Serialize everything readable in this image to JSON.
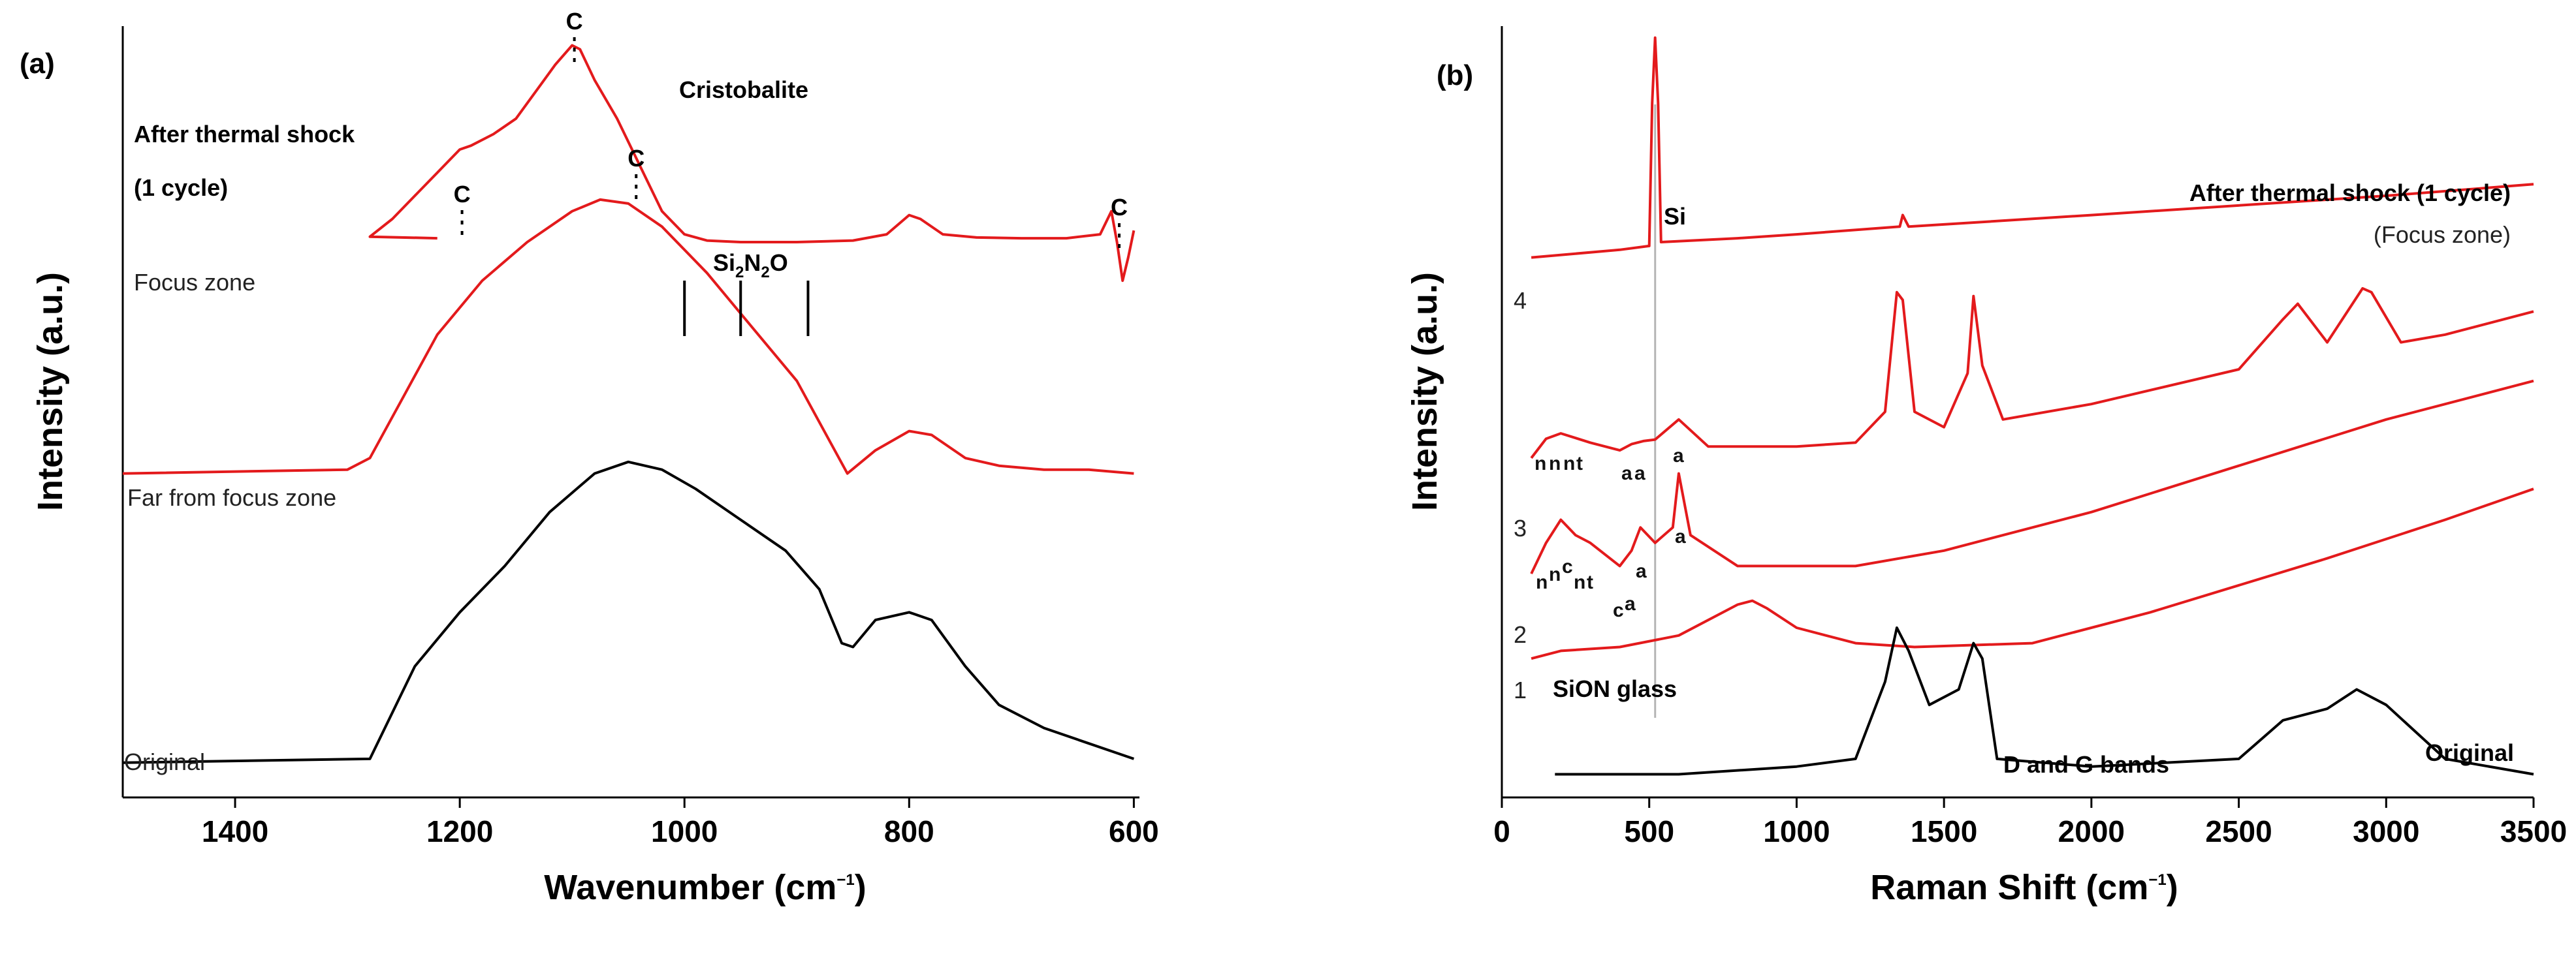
{
  "colors": {
    "red_trace": "#e31a1c",
    "black_trace": "#000000",
    "si_line": "#b5b5b5"
  },
  "chart_data": [
    {
      "panel": "(a)",
      "type": "line",
      "xlabel_main": "Wavenumber (cm",
      "xlabel_sup": "−1",
      "xlabel_end": ")",
      "ylabel": "Intensity (a.u.)",
      "xlim": [
        1500,
        595
      ],
      "x_reversed": true,
      "xticks": [
        1400,
        1200,
        1000,
        800,
        600
      ],
      "tick_labels": [
        "1400",
        "1200",
        "1000",
        "800",
        "600"
      ],
      "ylim": [
        0,
        10
      ],
      "legend_title_line1": "After thermal shock",
      "legend_title_line2": "(1 cycle)",
      "phase_label": "Cristobalite",
      "si2n2o": {
        "base": "Si",
        "sub1": "2",
        "mid": "N",
        "sub2": "2",
        "end": "O",
        "positions": [
          1000,
          950,
          890
        ]
      },
      "c_markers": [
        {
          "label": "C",
          "x": 1198
        },
        {
          "label": "C",
          "x": 1098
        },
        {
          "label": "C",
          "x": 1043
        },
        {
          "label": "C",
          "x": 613
        }
      ],
      "series": [
        {
          "name": "Focus zone",
          "color": "#e31a1c",
          "points": [
            [
              1220,
              7.25
            ],
            [
              1280,
              7.27
            ],
            [
              1260,
              7.5
            ],
            [
              1240,
              7.8
            ],
            [
              1220,
              8.1
            ],
            [
              1200,
              8.4
            ],
            [
              1190,
              8.45
            ],
            [
              1170,
              8.6
            ],
            [
              1150,
              8.8
            ],
            [
              1130,
              9.2
            ],
            [
              1115,
              9.5
            ],
            [
              1100,
              9.75
            ],
            [
              1093,
              9.7
            ],
            [
              1080,
              9.3
            ],
            [
              1060,
              8.8
            ],
            [
              1040,
              8.2
            ],
            [
              1020,
              7.6
            ],
            [
              1000,
              7.3
            ],
            [
              980,
              7.22
            ],
            [
              950,
              7.2
            ],
            [
              900,
              7.2
            ],
            [
              850,
              7.22
            ],
            [
              820,
              7.3
            ],
            [
              800,
              7.55
            ],
            [
              790,
              7.5
            ],
            [
              770,
              7.3
            ],
            [
              740,
              7.26
            ],
            [
              700,
              7.25
            ],
            [
              660,
              7.25
            ],
            [
              630,
              7.3
            ],
            [
              620,
              7.6
            ],
            [
              615,
              7.2
            ],
            [
              610,
              6.7
            ],
            [
              605,
              7.0
            ],
            [
              600,
              7.35
            ]
          ]
        },
        {
          "name": "Far from focus zone",
          "color": "#e31a1c",
          "points": [
            [
              1500,
              4.2
            ],
            [
              1300,
              4.25
            ],
            [
              1280,
              4.4
            ],
            [
              1250,
              5.2
            ],
            [
              1220,
              6.0
            ],
            [
              1180,
              6.7
            ],
            [
              1140,
              7.2
            ],
            [
              1100,
              7.6
            ],
            [
              1075,
              7.75
            ],
            [
              1050,
              7.7
            ],
            [
              1020,
              7.4
            ],
            [
              980,
              6.8
            ],
            [
              940,
              6.1
            ],
            [
              900,
              5.4
            ],
            [
              870,
              4.6
            ],
            [
              855,
              4.2
            ],
            [
              830,
              4.5
            ],
            [
              800,
              4.75
            ],
            [
              780,
              4.7
            ],
            [
              750,
              4.4
            ],
            [
              720,
              4.3
            ],
            [
              680,
              4.25
            ],
            [
              640,
              4.25
            ],
            [
              600,
              4.2
            ]
          ]
        },
        {
          "name": "Original",
          "color": "#000000",
          "points": [
            [
              1500,
              0.45
            ],
            [
              1280,
              0.5
            ],
            [
              1260,
              1.1
            ],
            [
              1240,
              1.7
            ],
            [
              1200,
              2.4
            ],
            [
              1160,
              3.0
            ],
            [
              1120,
              3.7
            ],
            [
              1080,
              4.2
            ],
            [
              1050,
              4.35
            ],
            [
              1020,
              4.25
            ],
            [
              990,
              4.0
            ],
            [
              950,
              3.6
            ],
            [
              910,
              3.2
            ],
            [
              880,
              2.7
            ],
            [
              860,
              2.0
            ],
            [
              850,
              1.95
            ],
            [
              830,
              2.3
            ],
            [
              800,
              2.4
            ],
            [
              780,
              2.3
            ],
            [
              750,
              1.7
            ],
            [
              720,
              1.2
            ],
            [
              680,
              0.9
            ],
            [
              640,
              0.7
            ],
            [
              600,
              0.5
            ]
          ]
        }
      ]
    },
    {
      "panel": "(b)",
      "type": "line",
      "xlabel_main": "Raman Shift (cm",
      "xlabel_sup": "−1",
      "xlabel_end": ")",
      "ylabel": "Intensity (a.u.)",
      "xlim": [
        0,
        3500
      ],
      "xticks": [
        0,
        500,
        1000,
        1500,
        2000,
        2500,
        3000,
        3500
      ],
      "tick_labels": [
        "0",
        "500",
        "1000",
        "1500",
        "2000",
        "2500",
        "3000",
        "3500"
      ],
      "ylim": [
        0,
        10
      ],
      "title_line1": "After thermal shock (1 cycle)",
      "title_line2": "(Focus zone)",
      "si_label": "Si",
      "si_position": 520,
      "sion_label": "SiON glass",
      "dg_label": "D and G bands",
      "original_label": "Original",
      "trace_numbers": [
        "4",
        "3",
        "2",
        "1"
      ],
      "trace3_letters": [
        "n",
        "n",
        "n",
        "t",
        "a",
        "a",
        "a"
      ],
      "trace2_letters": [
        "n",
        "n",
        "c",
        "n",
        "t",
        "c",
        "a",
        "a",
        "a"
      ],
      "series": [
        {
          "name": "4",
          "color": "#e31a1c",
          "points": [
            [
              100,
              7.0
            ],
            [
              400,
              7.1
            ],
            [
              500,
              7.15
            ],
            [
              510,
              9.0
            ],
            [
              520,
              9.85
            ],
            [
              530,
              9.0
            ],
            [
              540,
              7.2
            ],
            [
              800,
              7.25
            ],
            [
              1000,
              7.3
            ],
            [
              1350,
              7.4
            ],
            [
              1360,
              7.55
            ],
            [
              1380,
              7.4
            ],
            [
              2000,
              7.55
            ],
            [
              3000,
              7.8
            ],
            [
              3500,
              7.95
            ]
          ]
        },
        {
          "name": "3",
          "color": "#e31a1c",
          "points": [
            [
              100,
              4.4
            ],
            [
              150,
              4.65
            ],
            [
              200,
              4.72
            ],
            [
              250,
              4.66
            ],
            [
              300,
              4.6
            ],
            [
              400,
              4.5
            ],
            [
              440,
              4.58
            ],
            [
              480,
              4.62
            ],
            [
              520,
              4.64
            ],
            [
              600,
              4.9
            ],
            [
              700,
              4.55
            ],
            [
              1000,
              4.55
            ],
            [
              1200,
              4.6
            ],
            [
              1300,
              5.0
            ],
            [
              1340,
              6.55
            ],
            [
              1360,
              6.45
            ],
            [
              1400,
              5.0
            ],
            [
              1500,
              4.8
            ],
            [
              1580,
              5.5
            ],
            [
              1600,
              6.5
            ],
            [
              1630,
              5.6
            ],
            [
              1700,
              4.9
            ],
            [
              2000,
              5.1
            ],
            [
              2500,
              5.55
            ],
            [
              2650,
              6.2
            ],
            [
              2700,
              6.4
            ],
            [
              2800,
              5.9
            ],
            [
              2920,
              6.6
            ],
            [
              2950,
              6.55
            ],
            [
              3050,
              5.9
            ],
            [
              3200,
              6.0
            ],
            [
              3500,
              6.3
            ]
          ]
        },
        {
          "name": "2",
          "color": "#e31a1c",
          "points": [
            [
              100,
              2.9
            ],
            [
              150,
              3.3
            ],
            [
              200,
              3.6
            ],
            [
              250,
              3.4
            ],
            [
              300,
              3.3
            ],
            [
              400,
              3.0
            ],
            [
              440,
              3.2
            ],
            [
              470,
              3.5
            ],
            [
              520,
              3.3
            ],
            [
              580,
              3.5
            ],
            [
              600,
              4.2
            ],
            [
              640,
              3.4
            ],
            [
              800,
              3.0
            ],
            [
              1200,
              3.0
            ],
            [
              1500,
              3.2
            ],
            [
              2000,
              3.7
            ],
            [
              2500,
              4.3
            ],
            [
              3000,
              4.9
            ],
            [
              3500,
              5.4
            ]
          ]
        },
        {
          "name": "1",
          "color": "#e31a1c",
          "points": [
            [
              100,
              1.8
            ],
            [
              200,
              1.9
            ],
            [
              400,
              1.95
            ],
            [
              600,
              2.1
            ],
            [
              800,
              2.5
            ],
            [
              850,
              2.55
            ],
            [
              900,
              2.45
            ],
            [
              1000,
              2.2
            ],
            [
              1200,
              2.0
            ],
            [
              1400,
              1.95
            ],
            [
              1800,
              2.0
            ],
            [
              2200,
              2.4
            ],
            [
              2800,
              3.1
            ],
            [
              3200,
              3.6
            ],
            [
              3500,
              4.0
            ]
          ]
        },
        {
          "name": "Original",
          "color": "#000000",
          "points": [
            [
              180,
              0.3
            ],
            [
              600,
              0.3
            ],
            [
              1000,
              0.4
            ],
            [
              1200,
              0.5
            ],
            [
              1300,
              1.5
            ],
            [
              1340,
              2.2
            ],
            [
              1380,
              1.9
            ],
            [
              1450,
              1.2
            ],
            [
              1550,
              1.4
            ],
            [
              1600,
              2.0
            ],
            [
              1630,
              1.8
            ],
            [
              1680,
              0.5
            ],
            [
              2000,
              0.4
            ],
            [
              2500,
              0.5
            ],
            [
              2650,
              1.0
            ],
            [
              2800,
              1.15
            ],
            [
              2900,
              1.4
            ],
            [
              3000,
              1.2
            ],
            [
              3200,
              0.5
            ],
            [
              3500,
              0.3
            ]
          ]
        }
      ]
    }
  ]
}
